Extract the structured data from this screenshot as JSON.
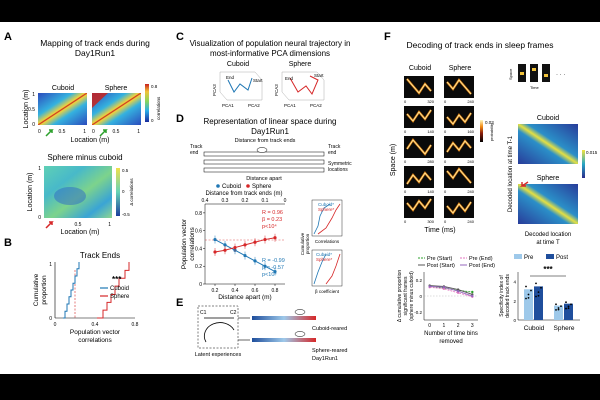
{
  "panel_A": {
    "letter": "A",
    "title": [
      "Mapping of track ends during",
      "Day1Run1"
    ],
    "heat1_title": "Cuboid",
    "heat2_title": "Sphere",
    "ylabel": "Location (m)",
    "xlabel": "Location (m)",
    "ticks": [
      "0",
      "0.5",
      "1",
      "1",
      "0.5",
      "0"
    ],
    "cbar_label": "correlations",
    "cbar_ticks": [
      "0.8",
      "0"
    ],
    "diff_title": "Sphere minus cuboid",
    "diff_cbar_label": "Δ correlations",
    "diff_cbar_ticks": [
      "0.5",
      "0",
      "-0.5"
    ]
  },
  "panel_B": {
    "letter": "B",
    "title": "Track Ends",
    "ylabel": [
      "Cumulative",
      "proportion"
    ],
    "xlabel": [
      "Population vector",
      "correlations"
    ],
    "xticks": [
      "0",
      "0.4",
      "0.8"
    ],
    "yticks": [
      "0",
      "1"
    ],
    "legend": [
      "Cuboid",
      "Sphere"
    ],
    "sig": "***"
  },
  "panel_C": {
    "letter": "C",
    "title": [
      "Visualization of population neural trajectory in",
      "most-informative PCA dimensions"
    ],
    "sub1": "Cuboid",
    "sub2": "Sphere",
    "axes": [
      "PCA1",
      "PCA2",
      "PCA3"
    ],
    "start": "Start",
    "end": "End"
  },
  "panel_D": {
    "letter": "D",
    "title": [
      "Representation of linear space during",
      "Day1Run1"
    ],
    "schematic_top": "Distance from track ends",
    "track_end": [
      "Track",
      "end"
    ],
    "symmetric": [
      "Symmetric",
      "locations"
    ],
    "distance_apart": "Distance apart",
    "legend": [
      "Cuboid",
      "Sphere"
    ],
    "top_axis_label": "Distance from track ends (m)",
    "top_ticks": [
      "0.4",
      "0.3",
      "0.2",
      "0.1",
      "0"
    ],
    "xlabel": "Distance apart (m)",
    "xticks": [
      "0.2",
      "0.4",
      "0.6",
      "0.8"
    ],
    "ylabel": [
      "Population vector",
      "correlations"
    ],
    "yticks": [
      "0.8",
      "0.6",
      "0.4",
      "0.2",
      "0"
    ],
    "sphere_stats": [
      "R = 0.96",
      "β = 0.23",
      "p<10⁴"
    ],
    "cuboid_stats": [
      "R = -0.99",
      "β = -0.57",
      "p<10⁴"
    ],
    "inset_label": [
      "Cumulative",
      "proportion"
    ],
    "inset1_xlabel": "Correlations",
    "inset2_xlabel": "β coefficient",
    "inset_legend": [
      "Cuboid*",
      "Sphere*"
    ]
  },
  "panel_E": {
    "letter": "E",
    "c1": "C1",
    "c2": "C2",
    "latent": "Latent experiences",
    "cuboid_reared": "Cuboid-reared",
    "sphere_reared": "Sphere-reared",
    "day": "Day1Run1"
  },
  "panel_F": {
    "letter": "F",
    "title": "Decoding of track ends in sleep frames",
    "col1": "Cuboid",
    "col2": "Sphere",
    "space_label": "Space (m)",
    "time_label": "Time (ms)",
    "prob_label": "probability",
    "cbar_val": "0.03",
    "row_ticks": [
      [
        "0",
        "320",
        "0",
        "240"
      ],
      [
        "0",
        "140",
        "0",
        "160"
      ],
      [
        "0",
        "280",
        "0",
        "240"
      ],
      [
        "0",
        "140",
        "0",
        "240"
      ],
      [
        "0",
        "300",
        "0",
        "240"
      ]
    ],
    "schematic_labels": [
      "Space",
      "Time"
    ],
    "decode_cuboid": "Cuboid",
    "decode_sphere": "Sphere",
    "decode_ylabel": "Decoded location at time T-1",
    "decode_xlabel": [
      "Decoded location",
      "at time T"
    ],
    "decode_cbar": "0.015",
    "line_legend": [
      "Pre (Start)",
      "Post (Start)",
      "Pre (End)",
      "Post (End)"
    ],
    "line_ylabel": [
      "Δ cumulative proportion",
      "significant frames",
      "(sphere minus cuboid)"
    ],
    "line_xlabel": [
      "Number of time bins",
      "removed"
    ],
    "line_xticks": [
      "0",
      "1",
      "2",
      "3"
    ],
    "line_yticks": [
      "0.2",
      "0",
      "-0.2"
    ],
    "bar_legend": [
      "Pre",
      "Post"
    ],
    "bar_ylabel": [
      "Specificity index of",
      "decoded track ends"
    ],
    "bar_groups": [
      "Cuboid",
      "Sphere"
    ],
    "bar_yticks": [
      "4",
      "2",
      "0"
    ],
    "bar_sig": "***"
  },
  "chart_data": [
    {
      "type": "line",
      "title": "Track Ends",
      "xlabel": "Population vector correlations",
      "ylabel": "Cumulative proportion",
      "xlim": [
        0,
        0.8
      ],
      "ylim": [
        0,
        1
      ],
      "series": [
        {
          "name": "Cuboid",
          "color": "#1f77b4",
          "x": [
            0.08,
            0.1,
            0.12,
            0.14,
            0.16,
            0.18,
            0.2,
            0.22,
            0.24
          ],
          "y": [
            0.0,
            0.12,
            0.25,
            0.38,
            0.5,
            0.62,
            0.75,
            0.88,
            1.0
          ]
        },
        {
          "name": "Sphere",
          "color": "#d62728",
          "x": [
            0.42,
            0.48,
            0.52,
            0.56,
            0.6,
            0.64,
            0.7,
            0.74
          ],
          "y": [
            0.0,
            0.14,
            0.28,
            0.42,
            0.57,
            0.71,
            0.85,
            1.0
          ]
        }
      ]
    },
    {
      "type": "line",
      "title": "Representation of linear space during Day1Run1",
      "xlabel": "Distance apart (m)",
      "ylabel": "Population vector correlations",
      "xlim": [
        0.1,
        0.9
      ],
      "ylim": [
        0,
        0.9
      ],
      "series": [
        {
          "name": "Cuboid",
          "color": "#1f77b4",
          "x": [
            0.2,
            0.3,
            0.4,
            0.5,
            0.6,
            0.7,
            0.8
          ],
          "y": [
            0.5,
            0.44,
            0.38,
            0.32,
            0.26,
            0.2,
            0.14
          ]
        },
        {
          "name": "Sphere",
          "color": "#d62728",
          "x": [
            0.2,
            0.3,
            0.4,
            0.5,
            0.6,
            0.7,
            0.8
          ],
          "y": [
            0.36,
            0.38,
            0.41,
            0.44,
            0.47,
            0.5,
            0.52
          ]
        }
      ]
    },
    {
      "type": "line",
      "title": "Delta cumulative proportion significant frames",
      "xlabel": "Number of time bins removed",
      "ylabel": "Δ cumulative proportion (sphere minus cuboid)",
      "xlim": [
        -0.4,
        3.4
      ],
      "ylim": [
        -0.3,
        0.3
      ],
      "series": [
        {
          "name": "Pre (Start)",
          "color": "#2ca02c",
          "x": [
            0,
            1,
            2,
            3
          ],
          "y": [
            0.12,
            0.1,
            0.07,
            0.05
          ]
        },
        {
          "name": "Post (Start)",
          "color": "#555555",
          "x": [
            0,
            1,
            2,
            3
          ],
          "y": [
            0.13,
            0.12,
            0.08,
            0.02
          ]
        },
        {
          "name": "Pre (End)",
          "color": "#e377c2",
          "x": [
            0,
            1,
            2,
            3
          ],
          "y": [
            0.11,
            0.09,
            0.04,
            -0.01
          ]
        },
        {
          "name": "Post (End)",
          "color": "#9467bd",
          "x": [
            0,
            1,
            2,
            3
          ],
          "y": [
            0.12,
            0.11,
            0.06,
            0.0
          ]
        }
      ]
    },
    {
      "type": "bar",
      "title": "Specificity index of decoded track ends",
      "categories": [
        "Cuboid",
        "Sphere"
      ],
      "ylim": [
        0,
        5
      ],
      "series": [
        {
          "name": "Pre",
          "color": "#9ec9ea",
          "values": [
            3.2,
            1.5
          ]
        },
        {
          "name": "Post",
          "color": "#1f4e9c",
          "values": [
            3.5,
            1.7
          ]
        }
      ]
    }
  ]
}
